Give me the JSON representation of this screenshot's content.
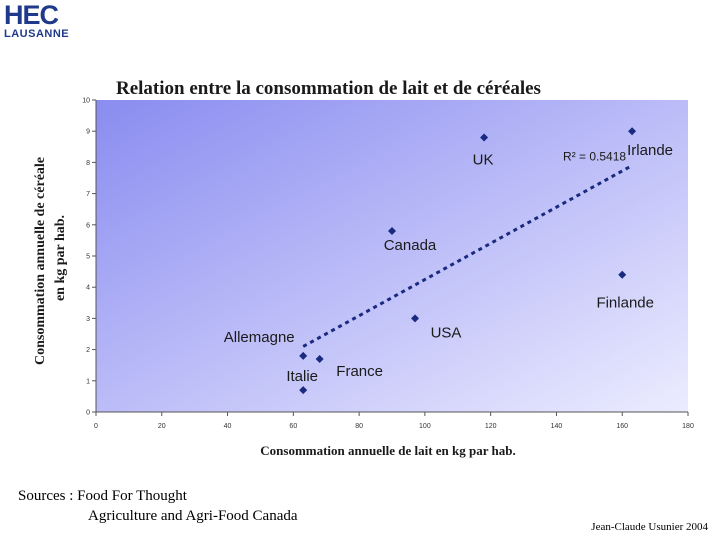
{
  "logo": {
    "line1": "HEC",
    "line2": "LAUSANNE"
  },
  "chart_data": {
    "type": "scatter",
    "title": "Relation entre la consommation de lait et de céréales",
    "xlabel": "Consommation annuelle de lait en kg par hab.",
    "ylabel_line1": "Consommation annuelle de céréale",
    "ylabel_line2": "en kg par hab.",
    "xlim": [
      0,
      180
    ],
    "ylim": [
      0,
      10
    ],
    "xticks": [
      0,
      20,
      40,
      60,
      80,
      100,
      120,
      140,
      160,
      180
    ],
    "yticks": [
      0,
      1,
      2,
      3,
      4,
      5,
      6,
      7,
      8,
      9,
      10
    ],
    "points": [
      {
        "label": "Italie",
        "x": 63,
        "y": 0.7
      },
      {
        "label": "Allemagne",
        "x": 63,
        "y": 1.8
      },
      {
        "label": "France",
        "x": 68,
        "y": 1.7
      },
      {
        "label": "USA",
        "x": 97,
        "y": 3.0
      },
      {
        "label": "Canada",
        "x": 90,
        "y": 5.8
      },
      {
        "label": "UK",
        "x": 118,
        "y": 8.8
      },
      {
        "label": "Irlande",
        "x": 163,
        "y": 9.0
      },
      {
        "label": "Finlande",
        "x": 160,
        "y": 4.4
      }
    ],
    "trendline": {
      "x": [
        63,
        163
      ],
      "y": [
        2.1,
        7.9
      ],
      "r2_label": "R² = 0.5418"
    },
    "grid": false,
    "colors": {
      "marker": "#1a2a80",
      "trend": "#1a2a80",
      "plot_bg_from": "#8a8cf0",
      "plot_bg_to": "#ececff"
    }
  },
  "footer": {
    "sources_line1": "Sources : Food For Thought",
    "sources_line2": "Agriculture and Agri-Food Canada",
    "author": "Jean-Claude Usunier 2004"
  }
}
